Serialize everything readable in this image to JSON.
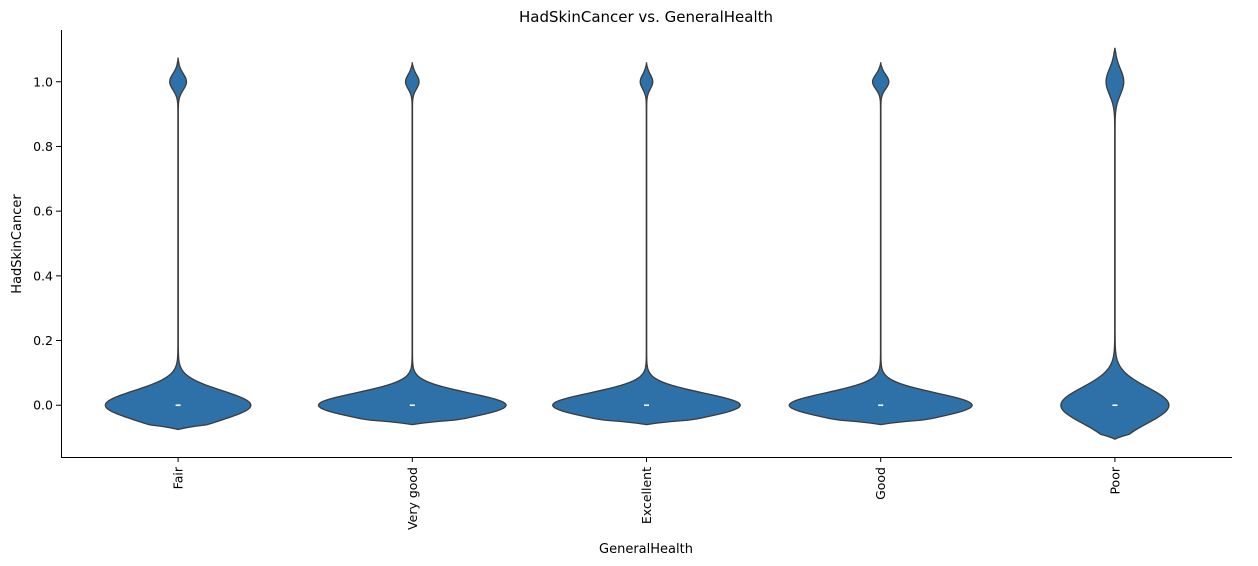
{
  "chart_data": {
    "type": "violin",
    "title": "HadSkinCancer vs. GeneralHealth",
    "xlabel": "GeneralHealth",
    "ylabel": "HadSkinCancer",
    "categories": [
      "Fair",
      "Very good",
      "Excellent",
      "Good",
      "Poor"
    ],
    "ylim": [
      -0.16,
      1.16
    ],
    "yticks": [
      0.0,
      0.2,
      0.4,
      0.6,
      0.8,
      1.0
    ],
    "ytick_labels": [
      "0.0",
      "0.2",
      "0.4",
      "0.6",
      "0.8",
      "1.0"
    ],
    "median": [
      0,
      0,
      0,
      0,
      0
    ],
    "violins": [
      {
        "category": "Fair",
        "ymin": -0.075,
        "ymax": 1.075,
        "low_halfwidth": 0.31,
        "high_halfwidth": 0.035,
        "low_spread": 0.045,
        "high_spread": 0.025
      },
      {
        "category": "Very good",
        "ymin": -0.06,
        "ymax": 1.06,
        "low_halfwidth": 0.4,
        "high_halfwidth": 0.028,
        "low_spread": 0.038,
        "high_spread": 0.022
      },
      {
        "category": "Excellent",
        "ymin": -0.06,
        "ymax": 1.06,
        "low_halfwidth": 0.4,
        "high_halfwidth": 0.026,
        "low_spread": 0.038,
        "high_spread": 0.022
      },
      {
        "category": "Good",
        "ymin": -0.06,
        "ymax": 1.06,
        "low_halfwidth": 0.39,
        "high_halfwidth": 0.034,
        "low_spread": 0.038,
        "high_spread": 0.022
      },
      {
        "category": "Poor",
        "ymin": -0.105,
        "ymax": 1.105,
        "low_halfwidth": 0.23,
        "high_halfwidth": 0.037,
        "low_spread": 0.055,
        "high_spread": 0.04
      }
    ],
    "series_color": "#2e71a8",
    "edge_color": "#3b3b3b",
    "grid": false,
    "legend": "none"
  }
}
